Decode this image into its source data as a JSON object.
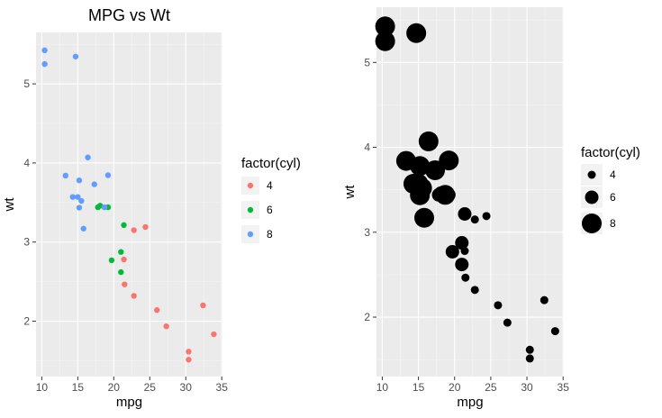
{
  "chart_data": [
    {
      "type": "scatter",
      "title": "MPG vs Wt",
      "xlabel": "mpg",
      "ylabel": "wt",
      "xlim": [
        9.2,
        35.1
      ],
      "ylim": [
        1.3,
        5.65
      ],
      "xticks": [
        10,
        15,
        20,
        25,
        30,
        35
      ],
      "yticks": [
        2,
        3,
        4,
        5
      ],
      "grid": true,
      "legend": {
        "title": "factor(cyl)",
        "position": "right",
        "entries": [
          {
            "label": "4",
            "color": "#F8766D"
          },
          {
            "label": "6",
            "color": "#00BA38"
          },
          {
            "label": "8",
            "color": "#619CFF"
          }
        ]
      },
      "series": [
        {
          "name": "4",
          "color": "#F8766D",
          "points": [
            [
              22.8,
              2.32
            ],
            [
              24.4,
              3.19
            ],
            [
              22.8,
              3.15
            ],
            [
              32.4,
              2.2
            ],
            [
              30.4,
              1.615
            ],
            [
              33.9,
              1.835
            ],
            [
              21.5,
              2.465
            ],
            [
              27.3,
              1.935
            ],
            [
              26.0,
              2.14
            ],
            [
              30.4,
              1.513
            ],
            [
              21.4,
              2.78
            ]
          ]
        },
        {
          "name": "6",
          "color": "#00BA38",
          "points": [
            [
              21.0,
              2.62
            ],
            [
              21.0,
              2.875
            ],
            [
              21.4,
              3.215
            ],
            [
              18.1,
              3.46
            ],
            [
              19.2,
              3.44
            ],
            [
              17.8,
              3.44
            ],
            [
              19.7,
              2.77
            ]
          ]
        },
        {
          "name": "8",
          "color": "#619CFF",
          "points": [
            [
              18.7,
              3.44
            ],
            [
              14.3,
              3.57
            ],
            [
              16.4,
              4.07
            ],
            [
              17.3,
              3.73
            ],
            [
              15.2,
              3.78
            ],
            [
              10.4,
              5.25
            ],
            [
              10.4,
              5.424
            ],
            [
              14.7,
              5.345
            ],
            [
              15.5,
              3.52
            ],
            [
              15.2,
              3.435
            ],
            [
              13.3,
              3.84
            ],
            [
              19.2,
              3.845
            ],
            [
              15.8,
              3.17
            ],
            [
              15.0,
              3.57
            ]
          ]
        }
      ]
    },
    {
      "type": "scatter",
      "title": "",
      "xlabel": "mpg",
      "ylabel": "wt",
      "xlim": [
        9.2,
        35.1
      ],
      "ylim": [
        1.3,
        5.65
      ],
      "xticks": [
        10,
        15,
        20,
        25,
        30,
        35
      ],
      "yticks": [
        2,
        3,
        4,
        5
      ],
      "grid": true,
      "point_color": "#000000",
      "legend": {
        "title": "factor(cyl)",
        "position": "right",
        "entries": [
          {
            "label": "4",
            "size_level": 4
          },
          {
            "label": "6",
            "size_level": 6
          },
          {
            "label": "8",
            "size_level": 8
          }
        ]
      },
      "series": [
        {
          "name": "4",
          "size_level": 4,
          "points": [
            [
              22.8,
              2.32
            ],
            [
              24.4,
              3.19
            ],
            [
              22.8,
              3.15
            ],
            [
              32.4,
              2.2
            ],
            [
              30.4,
              1.615
            ],
            [
              33.9,
              1.835
            ],
            [
              21.5,
              2.465
            ],
            [
              27.3,
              1.935
            ],
            [
              26.0,
              2.14
            ],
            [
              30.4,
              1.513
            ],
            [
              21.4,
              2.78
            ]
          ]
        },
        {
          "name": "6",
          "size_level": 6,
          "points": [
            [
              21.0,
              2.62
            ],
            [
              21.0,
              2.875
            ],
            [
              21.4,
              3.215
            ],
            [
              18.1,
              3.46
            ],
            [
              19.2,
              3.44
            ],
            [
              17.8,
              3.44
            ],
            [
              19.7,
              2.77
            ]
          ]
        },
        {
          "name": "8",
          "size_level": 8,
          "points": [
            [
              18.7,
              3.44
            ],
            [
              14.3,
              3.57
            ],
            [
              16.4,
              4.07
            ],
            [
              17.3,
              3.73
            ],
            [
              15.2,
              3.78
            ],
            [
              10.4,
              5.25
            ],
            [
              10.4,
              5.424
            ],
            [
              14.7,
              5.345
            ],
            [
              15.5,
              3.52
            ],
            [
              15.2,
              3.435
            ],
            [
              13.3,
              3.84
            ],
            [
              19.2,
              3.845
            ],
            [
              15.8,
              3.17
            ],
            [
              15.0,
              3.57
            ]
          ]
        }
      ]
    }
  ]
}
